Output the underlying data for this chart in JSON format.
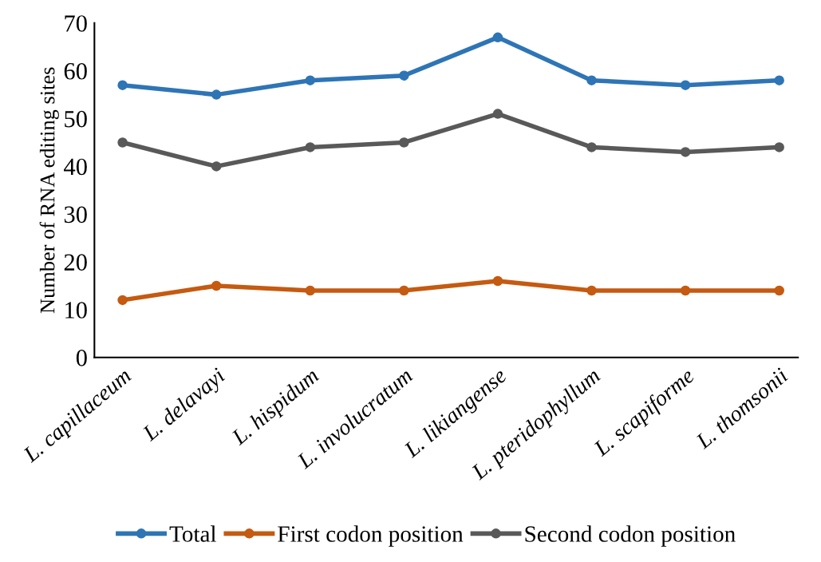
{
  "chart_data": {
    "type": "line",
    "ylabel": "Number of RNA editing sites",
    "categories": [
      "L. capillaceum",
      "L. delavayi",
      "L. hispidum",
      "L. involucratum",
      "L. likiangense",
      "L. pteridophyllum",
      "L. scapiforme",
      "L. thomsonii"
    ],
    "series": [
      {
        "name": "Total",
        "color": "#2e75b6",
        "values": [
          57,
          55,
          58,
          59,
          67,
          58,
          57,
          58
        ]
      },
      {
        "name": "First codon position",
        "color": "#c55a11",
        "values": [
          12,
          15,
          14,
          14,
          16,
          14,
          14,
          14
        ]
      },
      {
        "name": "Second codon position",
        "color": "#595959",
        "values": [
          45,
          40,
          44,
          45,
          51,
          44,
          43,
          44
        ]
      }
    ],
    "ylim": [
      0,
      70
    ],
    "yticks": [
      0,
      10,
      20,
      30,
      40,
      50,
      60,
      70
    ],
    "grid": false,
    "legend": "bottom",
    "marker": "circle",
    "line_style": "solid"
  }
}
